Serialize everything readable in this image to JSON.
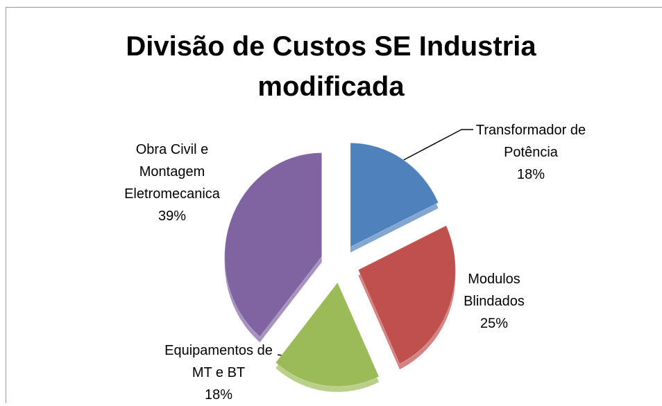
{
  "chart_data": {
    "type": "pie",
    "title": "Divisão de Custos SE Industria modificada",
    "categories": [
      "Transformador de Potência",
      "Modulos Blindados",
      "Equipamentos de MT e BT",
      "Obra Civil e Montagem Eletromecanica"
    ],
    "values": [
      18,
      25,
      18,
      39
    ],
    "value_labels": [
      "18%",
      "25%",
      "18%",
      "39%"
    ],
    "colors": [
      "#4f81bd",
      "#c0504d",
      "#9bbb59",
      "#8064a2"
    ]
  }
}
